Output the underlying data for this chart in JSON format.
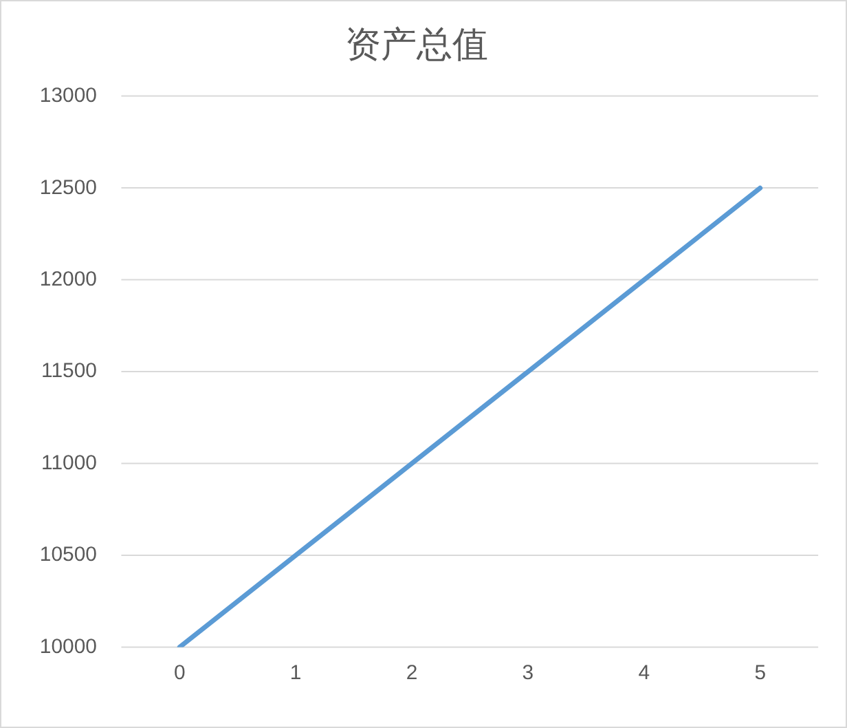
{
  "chart_data": {
    "type": "line",
    "title": "资产总值",
    "categories": [
      "0",
      "1",
      "2",
      "3",
      "4",
      "5"
    ],
    "series": [
      {
        "color": "#5b9bd5",
        "values": [
          10000,
          10500,
          11000,
          11500,
          12000,
          12500
        ]
      }
    ],
    "ylim": [
      10000,
      13000
    ],
    "yticks": [
      10000,
      10500,
      11000,
      11500,
      12000,
      12500,
      13000
    ],
    "grid": "y",
    "legend": false,
    "marker": "none",
    "line_style": "solid"
  }
}
